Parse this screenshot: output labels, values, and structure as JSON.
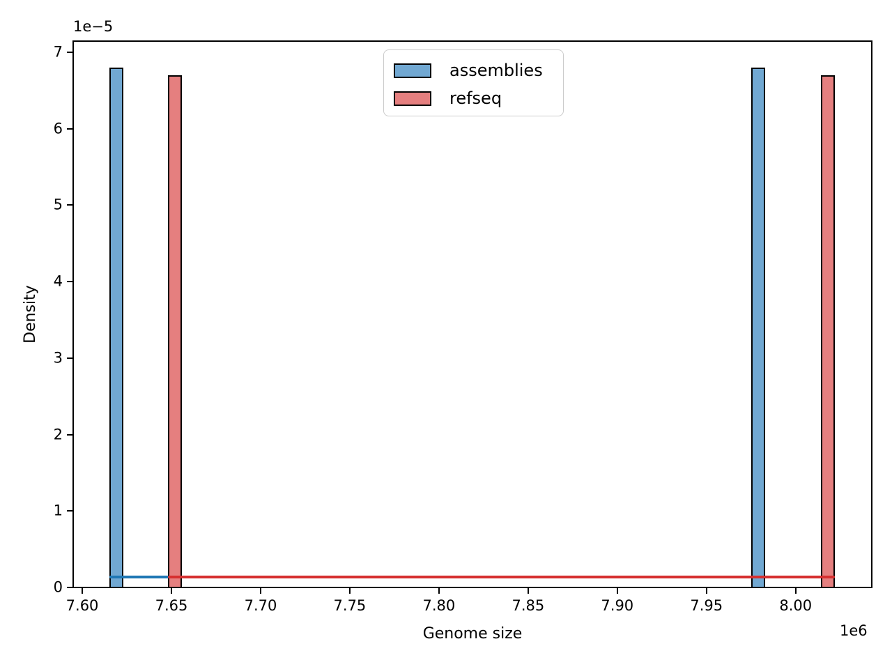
{
  "chart_data": {
    "type": "bar",
    "title": "",
    "xlabel": "Genome size",
    "ylabel": "Density",
    "x_offset_text": "1e6",
    "y_offset_text": "1e−5",
    "x_units": "values are in units of 1e6",
    "y_units": "values are in units of 1e-5",
    "xlim": [
      7.5949,
      8.0427
    ],
    "ylim": [
      0,
      7.146
    ],
    "grid": false,
    "legend_position": "upper center",
    "xticks": [
      {
        "value": 7.6,
        "label": "7.60"
      },
      {
        "value": 7.65,
        "label": "7.65"
      },
      {
        "value": 7.7,
        "label": "7.70"
      },
      {
        "value": 7.75,
        "label": "7.75"
      },
      {
        "value": 7.8,
        "label": "7.80"
      },
      {
        "value": 7.85,
        "label": "7.85"
      },
      {
        "value": 7.9,
        "label": "7.90"
      },
      {
        "value": 7.95,
        "label": "7.95"
      },
      {
        "value": 8.0,
        "label": "8.00"
      }
    ],
    "yticks": [
      {
        "value": 0,
        "label": "0"
      },
      {
        "value": 1,
        "label": "1"
      },
      {
        "value": 2,
        "label": "2"
      },
      {
        "value": 3,
        "label": "3"
      },
      {
        "value": 4,
        "label": "4"
      },
      {
        "value": 5,
        "label": "5"
      },
      {
        "value": 6,
        "label": "6"
      },
      {
        "value": 7,
        "label": "7"
      }
    ],
    "series": [
      {
        "name": "assemblies",
        "bar_fill": "#71A8D2",
        "bar_edge": "#000000",
        "line_color": "#1f77b4",
        "bars": [
          {
            "x_center": 7.619,
            "width": 0.0078,
            "height": 6.8
          },
          {
            "x_center": 7.979,
            "width": 0.0078,
            "height": 6.8
          }
        ],
        "kde_line": {
          "y": 0.137,
          "x_start": 7.6151,
          "x_end": 7.9829
        }
      },
      {
        "name": "refseq",
        "bar_fill": "#E57F7F",
        "bar_edge": "#000000",
        "line_color": "#d62f2f",
        "bars": [
          {
            "x_center": 7.652,
            "width": 0.0078,
            "height": 6.7
          },
          {
            "x_center": 8.018,
            "width": 0.0078,
            "height": 6.7
          }
        ],
        "kde_line": {
          "y": 0.137,
          "x_start": 7.6481,
          "x_end": 8.0219
        }
      }
    ]
  }
}
